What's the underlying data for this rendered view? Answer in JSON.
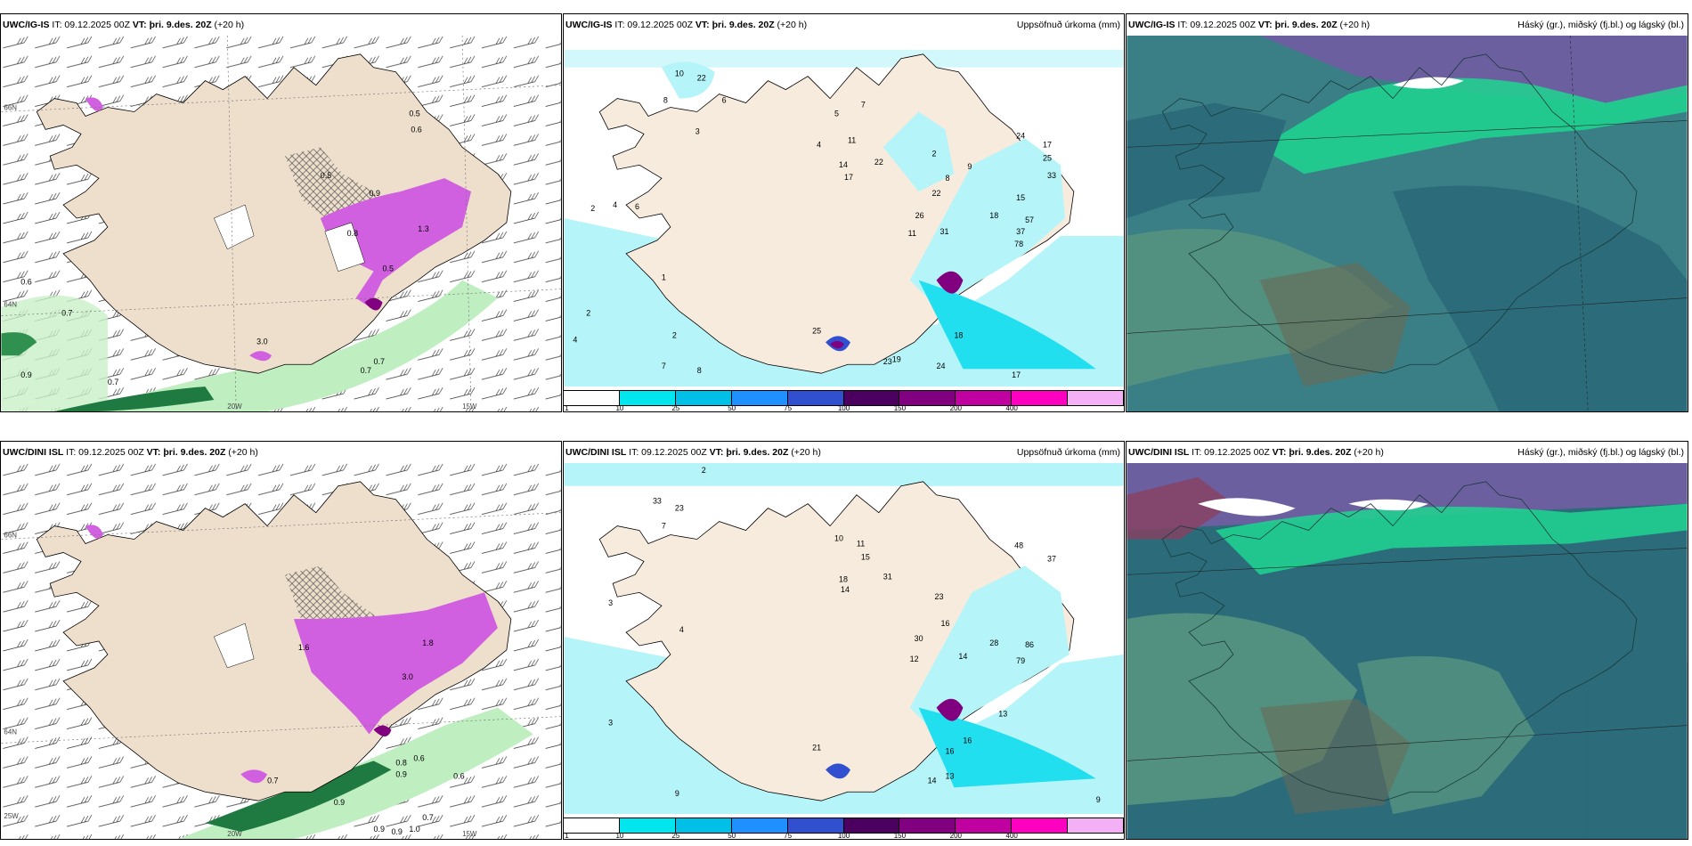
{
  "panels": [
    {
      "model": "UWC/IG-IS",
      "it": "IT: 09.12.2025 00Z",
      "vt_label": "VT:",
      "vt": "þri. 9.des. 20Z",
      "lead": "(+20 h)",
      "right": ""
    },
    {
      "model": "UWC/IG-IS",
      "it": "IT: 09.12.2025 00Z",
      "vt_label": "VT:",
      "vt": "þri. 9.des. 20Z",
      "lead": "(+20 h)",
      "right": "Uppsöfnuð úrkoma (mm)"
    },
    {
      "model": "UWC/IG-IS",
      "it": "IT: 09.12.2025 00Z",
      "vt_label": "VT:",
      "vt": "þri. 9.des. 20Z",
      "lead": "(+20 h)",
      "right": "Háský (gr.), miðský (fj.bl.) og lágský (bl.)"
    },
    {
      "model": "UWC/DINI ISL",
      "it": "IT: 09.12.2025 00Z",
      "vt_label": "VT:",
      "vt": "þri. 9.des. 20Z",
      "lead": "(+20 h)",
      "right": ""
    },
    {
      "model": "UWC/DINI ISL",
      "it": "IT: 09.12.2025 00Z",
      "vt_label": "VT:",
      "vt": "þri. 9.des. 20Z",
      "lead": "(+20 h)",
      "right": "Uppsöfnuð úrkoma (mm)"
    },
    {
      "model": "UWC/DINI ISL",
      "it": "IT: 09.12.2025 00Z",
      "vt_label": "VT:",
      "vt": "þri. 9.des. 20Z",
      "lead": "(+20 h)",
      "right": "Háský (gr.), miðský (fj.bl.) og lágský (bl.)"
    }
  ],
  "axis_labels": {
    "lat66": "66N",
    "lat64": "64N",
    "lon20": "20W",
    "lon15": "15W",
    "lon25": "25W"
  },
  "colorbar": {
    "ticks": [
      "1",
      "10",
      "25",
      "50",
      "75",
      "100",
      "150",
      "200",
      "400"
    ],
    "colors": [
      "#ffffff",
      "#00e5ee",
      "#00c0e8",
      "#1e90ff",
      "#3050d0",
      "#4b0060",
      "#800080",
      "#c000a0",
      "#ff00c0",
      "#f4b0f4"
    ]
  },
  "colors": {
    "land": "#eedfcc",
    "precip_light": "#b5f4f8",
    "precip_mid": "#22dff0",
    "precip_heavy": "#800080",
    "precip_max": "#d060e0",
    "cloud_low": "#2b6b7a",
    "cloud_mid": "#52907f",
    "cloud_high": "#6b5f9f",
    "cloud_ice": "#ffffff",
    "green_band": "#1ed690",
    "green_dark": "#1e7a40"
  },
  "map_labels": {
    "left_top": [
      "0.6",
      "0.7",
      "0.7",
      "0.7",
      "0.9",
      "0.7",
      "0.5",
      "0.6",
      "0.5",
      "0.9",
      "0.8",
      "0.5",
      "1.3",
      "3.0"
    ],
    "mid_top": [
      "10",
      "22",
      "6",
      "8",
      "3",
      "5",
      "7",
      "4",
      "11",
      "22",
      "14",
      "17",
      "2",
      "8",
      "22",
      "26",
      "11",
      "31",
      "9",
      "24",
      "17",
      "25",
      "33",
      "57",
      "37",
      "78",
      "15",
      "18",
      "18",
      "23",
      "6",
      "4",
      "2",
      "1",
      "2",
      "2",
      "7",
      "8",
      "4",
      "25",
      "19",
      "24",
      "17"
    ],
    "left_bot": [
      "0.7",
      "0.8",
      "0.6",
      "0.9",
      "0.9",
      "0.6",
      "0.7",
      "0.9",
      "1.0",
      "0.9",
      "1.6",
      "3.0",
      "1.8"
    ],
    "mid_bot": [
      "2",
      "33",
      "23",
      "7",
      "10",
      "11",
      "15",
      "18",
      "14",
      "31",
      "16",
      "30",
      "12",
      "23",
      "14",
      "28",
      "86",
      "79",
      "37",
      "48",
      "13",
      "16",
      "16",
      "14",
      "13",
      "3",
      "3",
      "9",
      "9",
      "21",
      "4"
    ]
  }
}
